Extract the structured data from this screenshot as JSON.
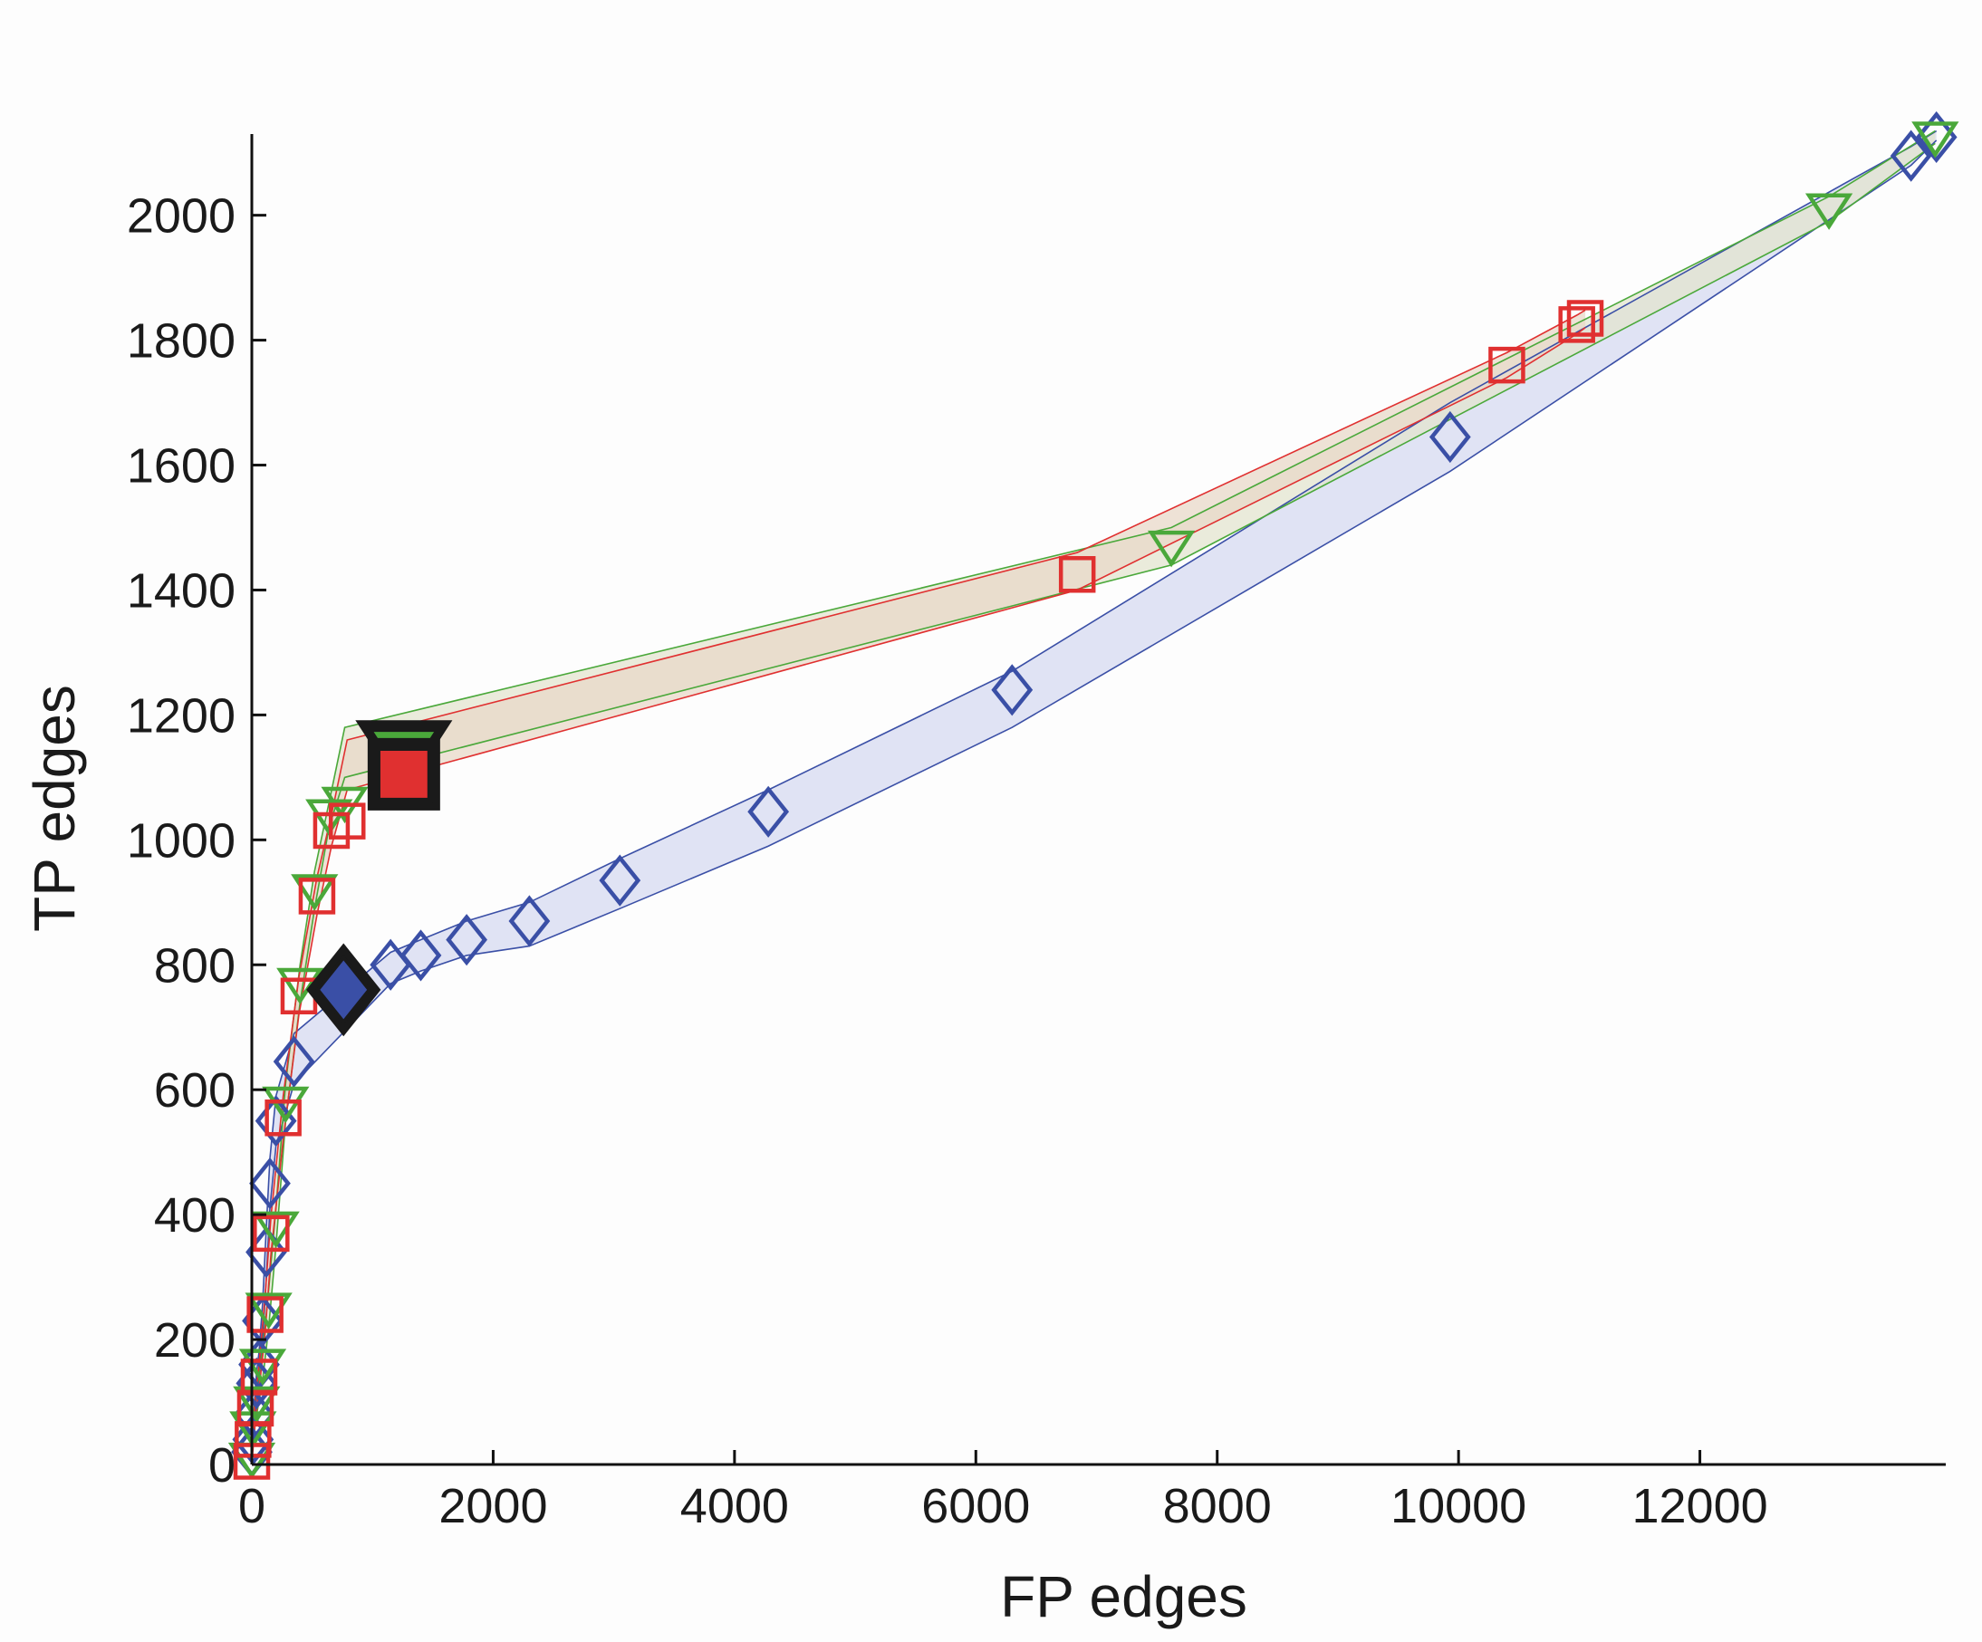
{
  "chart_data": {
    "type": "scatter",
    "title": "",
    "xlabel": "FP edges",
    "ylabel": "TP edges",
    "xlim": [
      0,
      14000
    ],
    "ylim": [
      0,
      2130
    ],
    "xticks": [
      0,
      2000,
      4000,
      6000,
      8000,
      10000,
      12000
    ],
    "yticks": [
      0,
      200,
      400,
      600,
      800,
      1000,
      1200,
      1400,
      1600,
      1800,
      2000
    ],
    "grid": false,
    "legend": "none",
    "series": [
      {
        "color": "#3a4fa6",
        "band_fill": "#d6d9f0",
        "marker": "diamond",
        "x": [
          0,
          10,
          20,
          40,
          60,
          90,
          120,
          150,
          200,
          350,
          1150,
          1400,
          1780,
          2300,
          3050,
          4280,
          6300,
          9930,
          13750,
          13960
        ],
        "y": [
          20,
          40,
          80,
          130,
          160,
          230,
          340,
          450,
          550,
          645,
          800,
          815,
          840,
          870,
          935,
          1045,
          1240,
          1645,
          2095,
          2125
        ],
        "band_upper": [
          30,
          50,
          95,
          150,
          180,
          260,
          380,
          490,
          590,
          690,
          820,
          840,
          870,
          900,
          970,
          1080,
          1270,
          1700,
          2110,
          2135
        ],
        "band_lower": [
          10,
          30,
          60,
          110,
          140,
          200,
          300,
          410,
          510,
          610,
          770,
          790,
          815,
          830,
          890,
          990,
          1180,
          1590,
          2080,
          2120
        ],
        "highlight": {
          "x": 760,
          "y": 760,
          "marker": "diamond"
        }
      },
      {
        "color": "#4aa83a",
        "band_fill": "#e3e4cf",
        "marker": "triangle-down",
        "x": [
          0,
          10,
          40,
          90,
          140,
          200,
          280,
          400,
          520,
          640,
          770,
          7620,
          13070,
          13950
        ],
        "y": [
          10,
          60,
          100,
          160,
          250,
          380,
          580,
          770,
          920,
          1040,
          1060,
          1470,
          2010,
          2125
        ],
        "band_upper": [
          20,
          75,
          120,
          185,
          280,
          410,
          610,
          800,
          950,
          1060,
          1180,
          1500,
          2030,
          2135
        ],
        "band_lower": [
          0,
          45,
          80,
          135,
          220,
          350,
          550,
          740,
          890,
          1020,
          1100,
          1440,
          1990,
          2115
        ],
        "highlight": {
          "x": 1260,
          "y": 1140,
          "marker": "triangle-down"
        }
      },
      {
        "color": "#e03030",
        "band_fill": "#e8d8c8",
        "marker": "square",
        "x": [
          0,
          10,
          30,
          60,
          110,
          160,
          260,
          390,
          540,
          660,
          790,
          6840,
          10400,
          10980,
          11050
        ],
        "y": [
          5,
          40,
          90,
          140,
          240,
          370,
          555,
          750,
          910,
          1015,
          1030,
          1425,
          1760,
          1825,
          1835
        ],
        "band_upper": [
          15,
          55,
          110,
          160,
          270,
          400,
          590,
          780,
          940,
          1040,
          1160,
          1460,
          1780,
          1840,
          1848
        ],
        "band_lower": [
          0,
          25,
          70,
          120,
          210,
          340,
          520,
          720,
          880,
          990,
          1080,
          1400,
          1740,
          1810,
          1820
        ],
        "highlight": {
          "x": 1260,
          "y": 1105,
          "marker": "square"
        }
      }
    ]
  }
}
